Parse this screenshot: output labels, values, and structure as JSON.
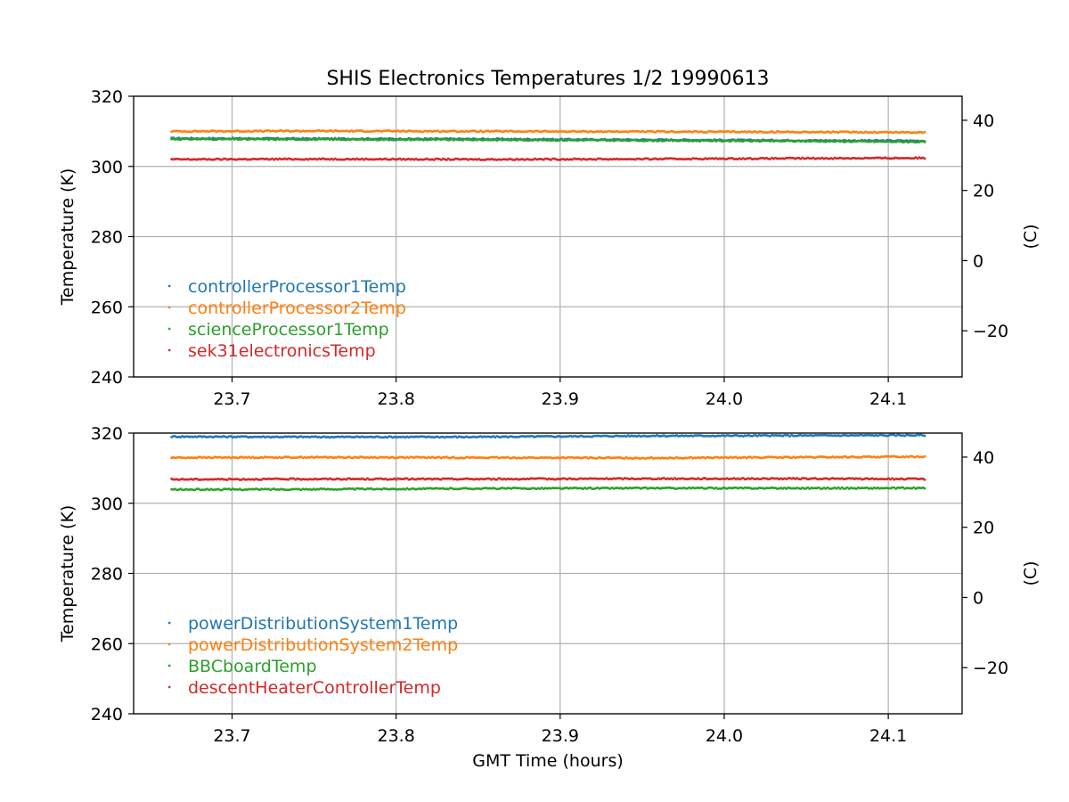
{
  "chart_data": {
    "title": "SHIS Electronics Temperatures 1/2 19990613",
    "xlabel": "GMT Time (hours)",
    "colors": {
      "blue": "#1f77b4",
      "orange": "#ff7f0e",
      "green": "#2ca02c",
      "red": "#d62728",
      "grid": "#b0b0b0"
    },
    "panels": [
      {
        "type": "scatter",
        "ylabel": "Temperature (K)",
        "y2label": "(C)",
        "ylim": [
          240,
          320
        ],
        "xlim": [
          23.64,
          24.145
        ],
        "yticks": [
          240,
          260,
          280,
          300,
          320
        ],
        "y2ticks": [
          -20,
          0,
          20,
          40
        ],
        "y2tick_labels": [
          "−20",
          "0",
          "20",
          "40"
        ],
        "xticks": [
          23.7,
          23.8,
          23.9,
          24.0,
          24.1
        ],
        "xtick_labels": [
          "23.7",
          "23.8",
          "23.9",
          "24.0",
          "24.1"
        ],
        "grid": true,
        "legend_position": "lower-left",
        "series": [
          {
            "name": "controllerProcessor1Temp",
            "color": "#1f77b4",
            "x": [
              23.663,
              23.75,
              23.85,
              23.95,
              24.05,
              24.122
            ],
            "y": [
              308.0,
              307.9,
              307.8,
              307.6,
              307.4,
              307.3
            ]
          },
          {
            "name": "controllerProcessor2Temp",
            "color": "#ff7f0e",
            "x": [
              23.663,
              23.75,
              23.85,
              23.95,
              24.05,
              24.122
            ],
            "y": [
              310.0,
              310.1,
              310.0,
              309.9,
              309.8,
              309.7
            ]
          },
          {
            "name": "scienceProcessor1Temp",
            "color": "#2ca02c",
            "x": [
              23.663,
              23.75,
              23.85,
              23.95,
              24.05,
              24.122
            ],
            "y": [
              307.8,
              307.7,
              307.6,
              307.4,
              307.2,
              307.0
            ]
          },
          {
            "name": "sek31electronicsTemp",
            "color": "#d62728",
            "x": [
              23.663,
              23.75,
              23.85,
              23.95,
              24.05,
              24.122
            ],
            "y": [
              302.0,
              302.1,
              302.0,
              302.1,
              302.3,
              302.4
            ]
          }
        ]
      },
      {
        "type": "scatter",
        "ylabel": "Temperature (K)",
        "y2label": "(C)",
        "ylim": [
          240,
          320
        ],
        "xlim": [
          23.64,
          24.145
        ],
        "yticks": [
          240,
          260,
          280,
          300,
          320
        ],
        "y2ticks": [
          -20,
          0,
          20,
          40
        ],
        "y2tick_labels": [
          "−20",
          "0",
          "20",
          "40"
        ],
        "xticks": [
          23.7,
          23.8,
          23.9,
          24.0,
          24.1
        ],
        "xtick_labels": [
          "23.7",
          "23.8",
          "23.9",
          "24.0",
          "24.1"
        ],
        "grid": true,
        "legend_position": "lower-left",
        "series": [
          {
            "name": "powerDistributionSystem1Temp",
            "color": "#1f77b4",
            "x": [
              23.663,
              23.75,
              23.85,
              23.95,
              24.05,
              24.122
            ],
            "y": [
              319.0,
              318.9,
              318.9,
              319.2,
              319.3,
              319.4
            ]
          },
          {
            "name": "powerDistributionSystem2Temp",
            "color": "#ff7f0e",
            "x": [
              23.663,
              23.75,
              23.85,
              23.95,
              24.05,
              24.122
            ],
            "y": [
              313.0,
              313.1,
              313.0,
              312.9,
              313.1,
              313.3
            ]
          },
          {
            "name": "BBCboardTemp",
            "color": "#2ca02c",
            "x": [
              23.663,
              23.75,
              23.85,
              23.95,
              24.05,
              24.122
            ],
            "y": [
              303.9,
              304.0,
              304.2,
              304.3,
              304.3,
              304.3
            ]
          },
          {
            "name": "descentHeaterControllerTemp",
            "color": "#d62728",
            "x": [
              23.663,
              23.75,
              23.85,
              23.95,
              24.05,
              24.122
            ],
            "y": [
              306.8,
              306.9,
              306.9,
              307.0,
              307.0,
              306.9
            ]
          }
        ]
      }
    ]
  }
}
